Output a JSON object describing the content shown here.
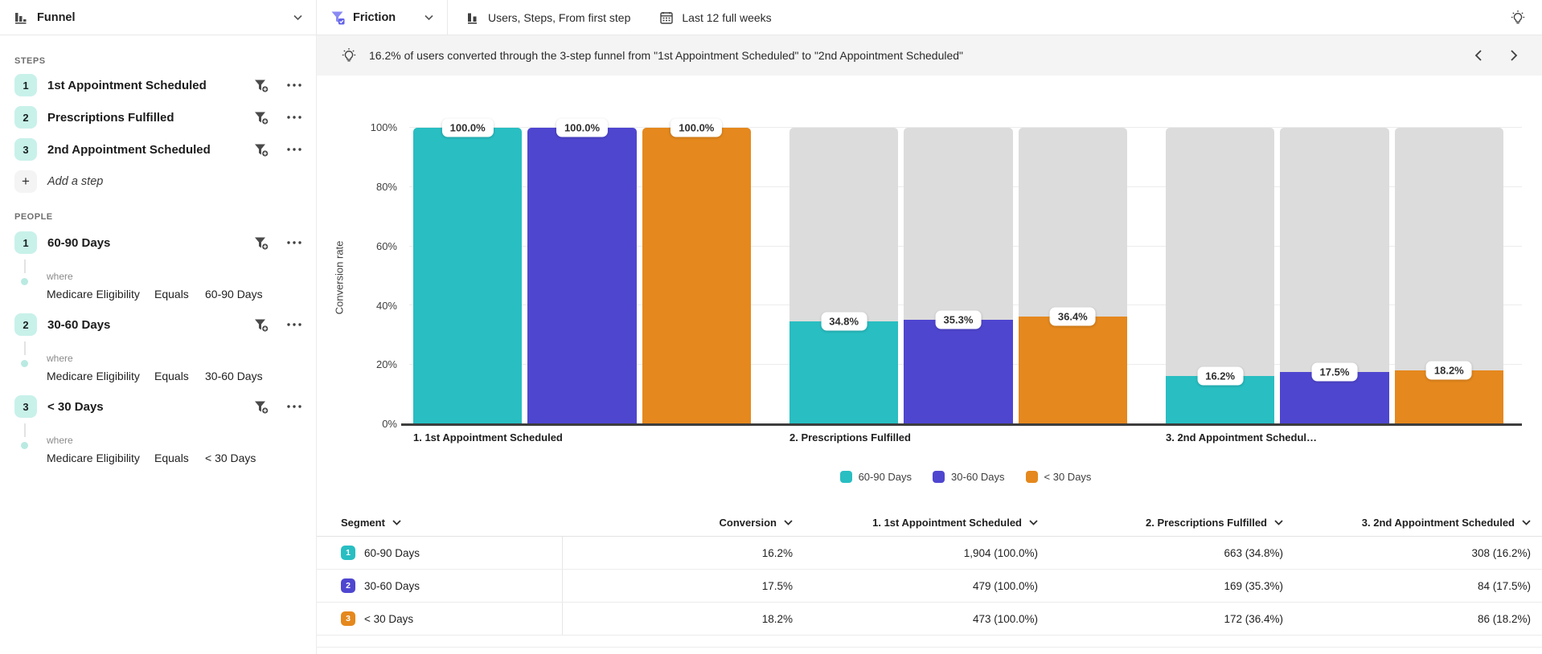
{
  "topbar": {
    "chart_type_label": "Funnel",
    "metric_label": "Friction",
    "view_settings_label": "Users, Steps, From first step",
    "date_range_label": "Last 12 full weeks"
  },
  "insight": {
    "text": "16.2% of users converted through the 3-step funnel from \"1st Appointment Scheduled\" to \"2nd Appointment Scheduled\""
  },
  "sidebar": {
    "steps_title": "STEPS",
    "steps": [
      {
        "num": "1",
        "label": "1st Appointment Scheduled"
      },
      {
        "num": "2",
        "label": "Prescriptions Fulfilled"
      },
      {
        "num": "3",
        "label": "2nd Appointment Scheduled"
      }
    ],
    "add_step_label": "Add a step",
    "people_title": "PEOPLE",
    "people": [
      {
        "num": "1",
        "label": "60-90 Days",
        "where_label": "where",
        "property": "Medicare Eligibility",
        "operator": "Equals",
        "value": "60-90 Days"
      },
      {
        "num": "2",
        "label": "30-60 Days",
        "where_label": "where",
        "property": "Medicare Eligibility",
        "operator": "Equals",
        "value": "30-60 Days"
      },
      {
        "num": "3",
        "label": "< 30 Days",
        "where_label": "where",
        "property": "Medicare Eligibility",
        "operator": "Equals",
        "value": "< 30 Days"
      }
    ]
  },
  "chart_data": {
    "type": "bar",
    "title": "",
    "ylabel": "Conversion rate",
    "ylim": [
      0,
      100
    ],
    "yticks": [
      "0%",
      "20%",
      "40%",
      "60%",
      "80%",
      "100%"
    ],
    "categories": [
      "1. 1st Appointment Scheduled",
      "2. Prescriptions Fulfilled",
      "3. 2nd Appointment Schedul…"
    ],
    "series": [
      {
        "name": "60-90 Days",
        "color": "#28bec2",
        "values": [
          100.0,
          34.8,
          16.2
        ],
        "labels": [
          "100.0%",
          "34.8%",
          "16.2%"
        ]
      },
      {
        "name": "30-60 Days",
        "color": "#4f46d0",
        "values": [
          100.0,
          35.3,
          17.5
        ],
        "labels": [
          "100.0%",
          "35.3%",
          "17.5%"
        ]
      },
      {
        "name": "< 30 Days",
        "color": "#e5881d",
        "values": [
          100.0,
          36.4,
          18.2
        ],
        "labels": [
          "100.0%",
          "36.4%",
          "18.2%"
        ]
      }
    ],
    "track_color": "#dcdcdc",
    "grid": true,
    "legend_position": "bottom"
  },
  "table": {
    "columns": [
      "Segment",
      "Conversion",
      "1. 1st Appointment Scheduled",
      "2. Prescriptions Fulfilled",
      "3. 2nd Appointment Scheduled"
    ],
    "rows": [
      {
        "num": "1",
        "color": "#28bec2",
        "segment": "60-90 Days",
        "conversion": "16.2%",
        "step1": "1,904 (100.0%)",
        "step2": "663 (34.8%)",
        "step3": "308 (16.2%)"
      },
      {
        "num": "2",
        "color": "#4f46d0",
        "segment": "30-60 Days",
        "conversion": "17.5%",
        "step1": "479 (100.0%)",
        "step2": "169 (35.3%)",
        "step3": "84 (17.5%)"
      },
      {
        "num": "3",
        "color": "#e5881d",
        "segment": "< 30 Days",
        "conversion": "18.2%",
        "step1": "473 (100.0%)",
        "step2": "172 (36.4%)",
        "step3": "86 (18.2%)"
      }
    ]
  },
  "colors": {
    "step_badge_bg": "#c8f1ea",
    "banner_bg": "#f4f4f4",
    "axis": "#3d3d3d"
  }
}
